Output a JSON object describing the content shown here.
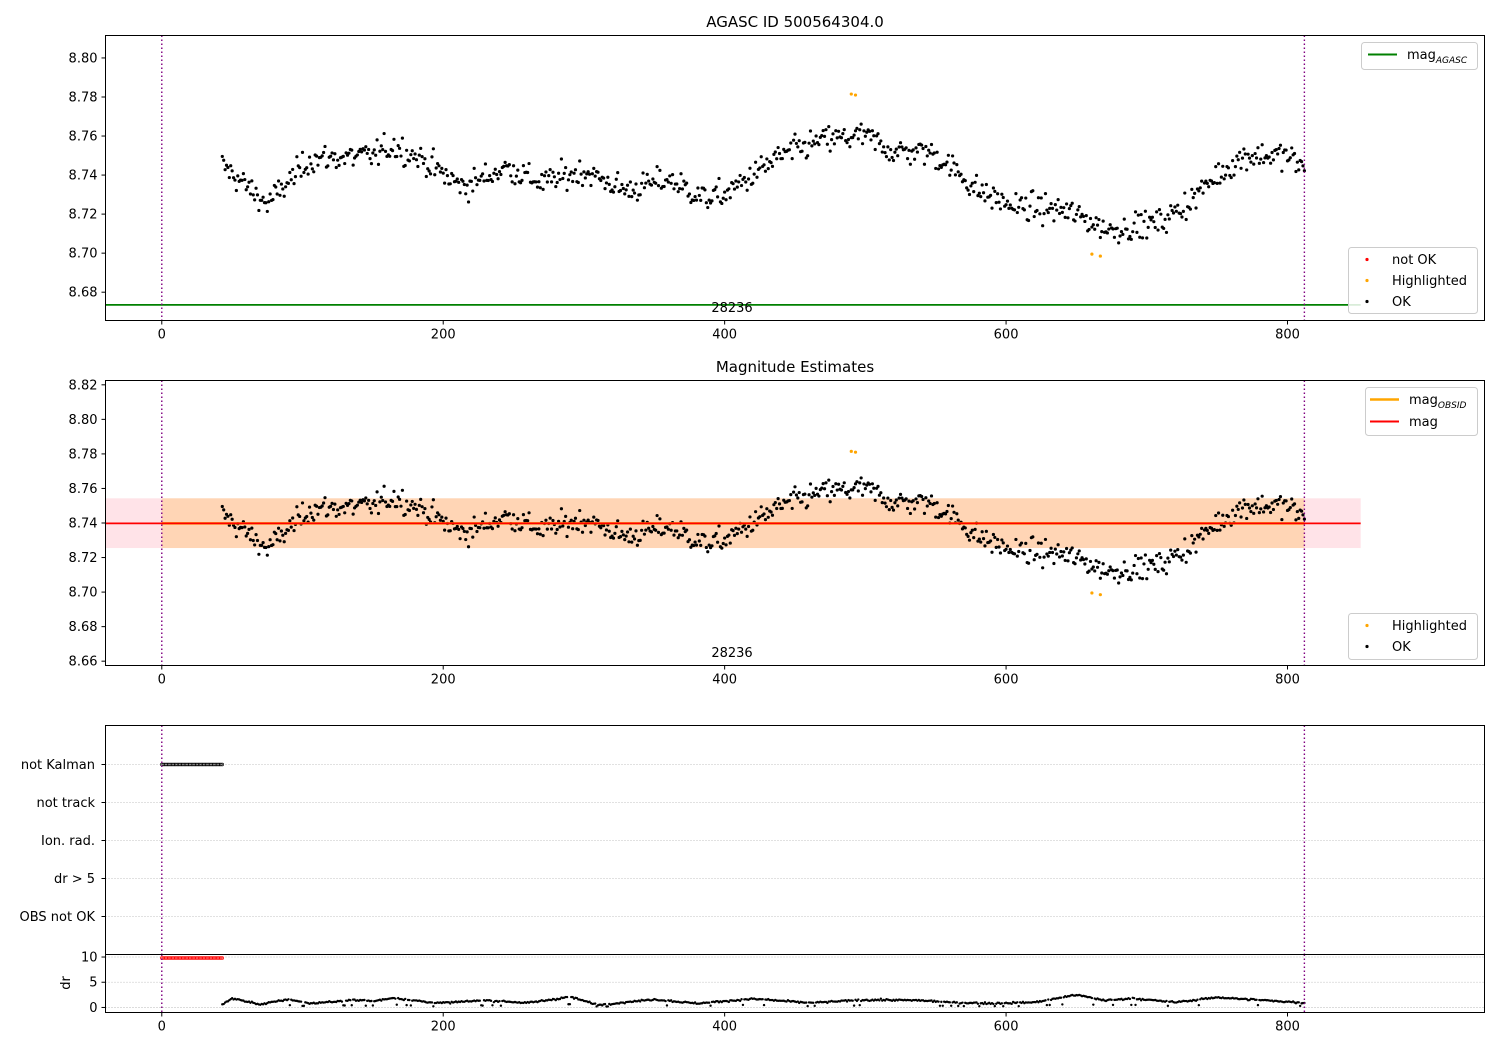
{
  "chart_data": [
    {
      "type": "scatter",
      "title": "AGASC ID 500564304.0",
      "xlim": [
        -40,
        940
      ],
      "ylim": [
        8.6655,
        8.8115
      ],
      "xticks": [
        0,
        200,
        400,
        600,
        800
      ],
      "yticks": [
        "8.68",
        "8.70",
        "8.72",
        "8.74",
        "8.76",
        "8.78",
        "8.80"
      ],
      "obsid_label": "28236",
      "vlines": [
        0,
        812
      ],
      "hline": {
        "y": 8.6735,
        "x_end": 852,
        "color": "#008000"
      },
      "legend_lines": [
        {
          "label": "mag",
          "sub": "AGASC",
          "color": "#008000"
        }
      ],
      "legend_markers": [
        {
          "label": "not OK",
          "color": "#ff0000"
        },
        {
          "label": "Highlighted",
          "color": "#ffa500"
        },
        {
          "label": "OK",
          "color": "#000000"
        }
      ],
      "highlighted": [
        [
          490,
          8.7815
        ],
        [
          493,
          8.781
        ],
        [
          661,
          8.6995
        ],
        [
          667,
          8.6985
        ]
      ]
    },
    {
      "type": "scatter",
      "title": "Magnitude Estimates",
      "xlim": [
        -40,
        940
      ],
      "ylim": [
        8.6575,
        8.8225
      ],
      "xticks": [
        0,
        200,
        400,
        600,
        800
      ],
      "yticks": [
        "8.66",
        "8.68",
        "8.70",
        "8.72",
        "8.74",
        "8.76",
        "8.78",
        "8.80",
        "8.82"
      ],
      "obsid_label": "28236",
      "vlines": [
        0,
        812
      ],
      "mean": 8.7398,
      "band": [
        8.7255,
        8.7543
      ],
      "band_x_end": 852,
      "legend_lines": [
        {
          "label": "mag",
          "sub": "OBSID",
          "color": "#ffa500"
        },
        {
          "label": "mag",
          "sub": "",
          "color": "#ff0000"
        }
      ],
      "legend_markers": [
        {
          "label": "Highlighted",
          "color": "#ffa500"
        },
        {
          "label": "OK",
          "color": "#000000"
        }
      ],
      "highlighted": [
        [
          490,
          8.7815
        ],
        [
          493,
          8.781
        ],
        [
          661,
          8.6995
        ],
        [
          667,
          8.6985
        ]
      ]
    },
    {
      "type": "scatter",
      "categories": [
        "not Kalman",
        "not track",
        "Ion. rad.",
        "dr > 5",
        "OBS not OK"
      ],
      "flag_ranges": [
        {
          "category": "not Kalman",
          "x": [
            0,
            43
          ]
        }
      ],
      "xlim": [
        -40,
        940
      ],
      "vlines": [
        0,
        812
      ]
    },
    {
      "type": "scatter",
      "ylabel": "dr",
      "xlim": [
        -40,
        940
      ],
      "ylim": [
        -1,
        10.5
      ],
      "yticks": [
        "0",
        "5",
        "10"
      ],
      "xticks": [
        0,
        200,
        400,
        600,
        800
      ],
      "vlines": [
        0,
        812
      ],
      "red_segment": {
        "x": [
          0,
          43
        ],
        "y": 9.8
      },
      "dr_start": 43,
      "dr_end": 812
    }
  ],
  "mag_series_knots": [
    [
      43,
      8.745
    ],
    [
      75,
      8.725
    ],
    [
      88,
      8.735
    ],
    [
      105,
      8.748
    ],
    [
      150,
      8.75
    ],
    [
      165,
      8.755
    ],
    [
      185,
      8.748
    ],
    [
      205,
      8.738
    ],
    [
      215,
      8.734
    ],
    [
      245,
      8.744
    ],
    [
      270,
      8.736
    ],
    [
      300,
      8.742
    ],
    [
      330,
      8.732
    ],
    [
      360,
      8.738
    ],
    [
      385,
      8.728
    ],
    [
      400,
      8.73
    ],
    [
      440,
      8.75
    ],
    [
      470,
      8.758
    ],
    [
      500,
      8.76
    ],
    [
      520,
      8.752
    ],
    [
      545,
      8.752
    ],
    [
      560,
      8.745
    ],
    [
      580,
      8.732
    ],
    [
      605,
      8.724
    ],
    [
      640,
      8.722
    ],
    [
      655,
      8.718
    ],
    [
      672,
      8.712
    ],
    [
      685,
      8.713
    ],
    [
      710,
      8.716
    ],
    [
      730,
      8.726
    ],
    [
      750,
      8.74
    ],
    [
      770,
      8.75
    ],
    [
      800,
      8.75
    ],
    [
      812,
      8.743
    ]
  ],
  "mag_noise": 0.0088,
  "dr_knots": [
    [
      43,
      0.6
    ],
    [
      50,
      1.8
    ],
    [
      70,
      0.6
    ],
    [
      90,
      1.6
    ],
    [
      105,
      0.8
    ],
    [
      140,
      1.5
    ],
    [
      150,
      1.2
    ],
    [
      165,
      1.9
    ],
    [
      190,
      1.0
    ],
    [
      200,
      0.9
    ],
    [
      230,
      1.4
    ],
    [
      260,
      0.9
    ],
    [
      290,
      2.1
    ],
    [
      310,
      0.5
    ],
    [
      350,
      1.6
    ],
    [
      380,
      0.8
    ],
    [
      420,
      1.7
    ],
    [
      460,
      0.9
    ],
    [
      500,
      1.5
    ],
    [
      540,
      1.4
    ],
    [
      560,
      1.0
    ],
    [
      590,
      0.8
    ],
    [
      600,
      0.9
    ],
    [
      620,
      1.0
    ],
    [
      650,
      2.5
    ],
    [
      670,
      1.4
    ],
    [
      690,
      1.8
    ],
    [
      720,
      1.0
    ],
    [
      750,
      2.0
    ],
    [
      790,
      1.3
    ],
    [
      812,
      0.9
    ]
  ]
}
